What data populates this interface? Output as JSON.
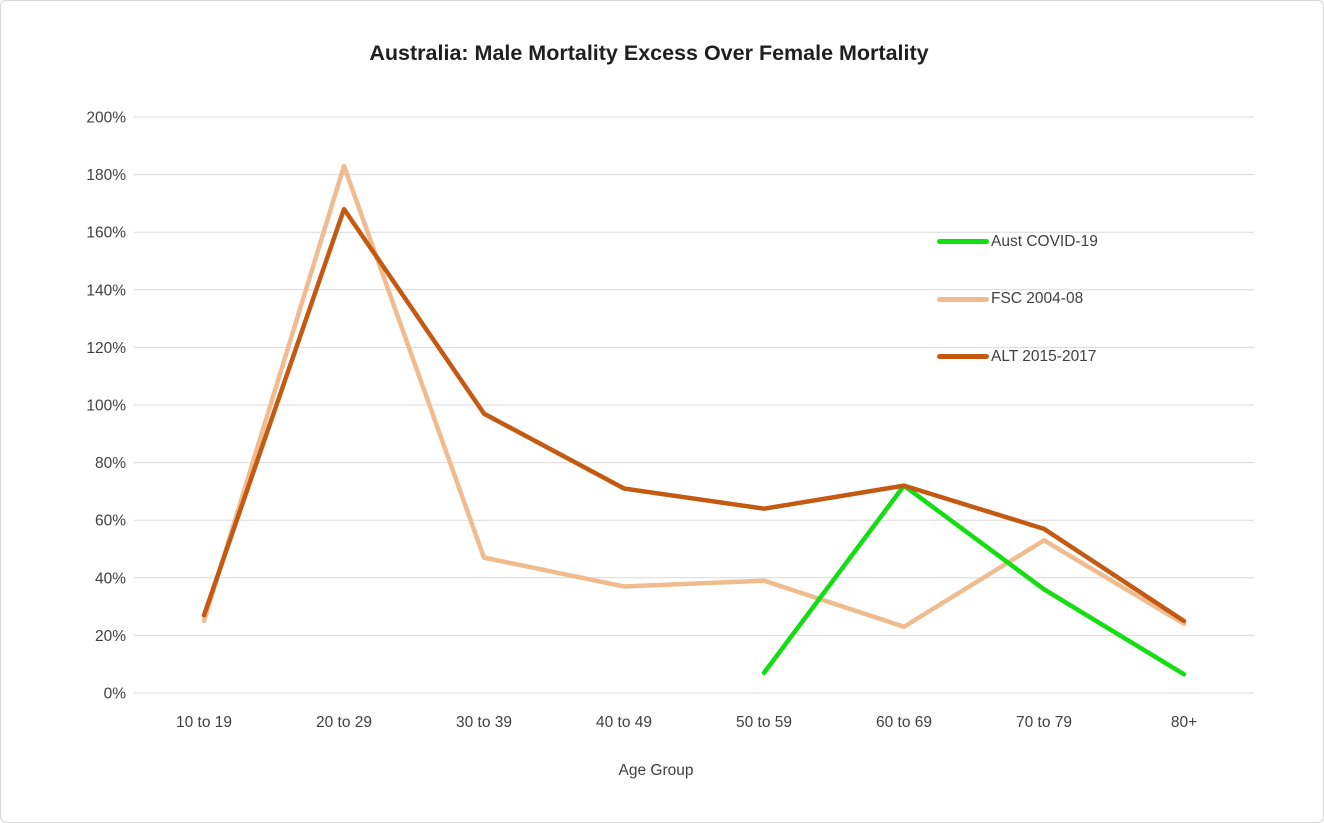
{
  "title": "Australia: Male Mortality Excess Over Female Mortality",
  "chart_data": {
    "type": "line",
    "title": "Australia: Male Mortality Excess Over Female Mortality",
    "xlabel": "Age Group",
    "ylabel": "",
    "categories": [
      "10 to 19",
      "20 to 29",
      "30 to 39",
      "40 to 49",
      "50 to 59",
      "60 to 69",
      "70 to 79",
      "80+"
    ],
    "series": [
      {
        "name": "Aust COVID-19",
        "color": "#12de12",
        "values": [
          null,
          null,
          null,
          null,
          7,
          72,
          36,
          6.5
        ]
      },
      {
        "name": "FSC 2004-08",
        "color": "#efbb8f",
        "values": [
          25,
          183,
          47,
          37,
          39,
          23,
          53,
          24
        ]
      },
      {
        "name": "ALT 2015-2017",
        "color": "#c45911",
        "values": [
          27,
          168,
          97,
          71,
          64,
          72,
          57,
          25
        ]
      }
    ],
    "draw_order": [
      "FSC 2004-08",
      "Aust COVID-19",
      "ALT 2015-2017"
    ],
    "ylim": [
      0,
      200
    ],
    "ytick_step": 20,
    "ytick_suffix": "%",
    "grid": true,
    "gridline_color": "#d9d9d9",
    "text_color": "#404040",
    "legend_position": "inside-right"
  }
}
